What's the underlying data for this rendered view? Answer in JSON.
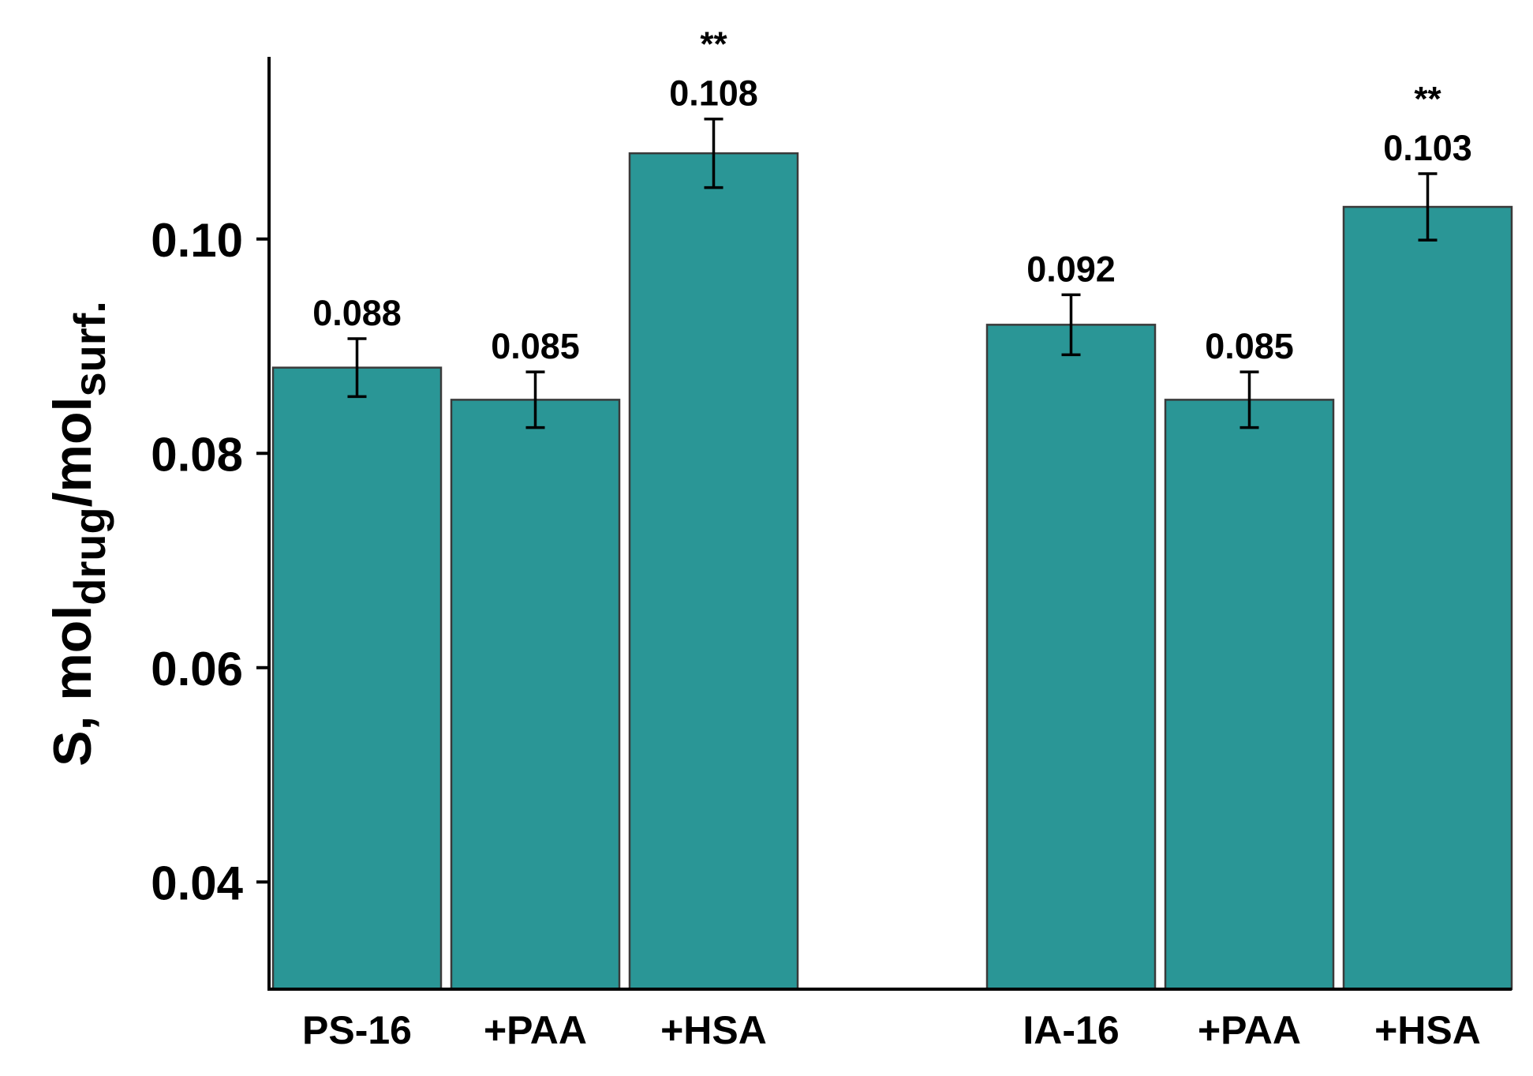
{
  "chart_data": {
    "type": "bar",
    "ylabel": {
      "prefix": "S, mol",
      "sub1": "drug",
      "slash": "/mol",
      "sub2": "surf."
    },
    "ylim": [
      0.03,
      0.117
    ],
    "yticks": [
      0.04,
      0.06,
      0.08,
      0.1
    ],
    "ytick_labels": [
      "0.04",
      "0.06",
      "0.08",
      "0.10"
    ],
    "bar_color": "#2a9696",
    "groups": [
      {
        "bars": [
          {
            "category": "PS-16",
            "value": 0.088,
            "label": "0.088",
            "error": 0.0027,
            "sig": ""
          },
          {
            "category": "+PAA",
            "value": 0.085,
            "label": "0.085",
            "error": 0.0026,
            "sig": ""
          },
          {
            "category": "+HSA",
            "value": 0.108,
            "label": "0.108",
            "error": 0.0032,
            "sig": "**"
          }
        ]
      },
      {
        "bars": [
          {
            "category": "IA-16",
            "value": 0.092,
            "label": "0.092",
            "error": 0.0028,
            "sig": ""
          },
          {
            "category": "+PAA",
            "value": 0.085,
            "label": "0.085",
            "error": 0.0026,
            "sig": ""
          },
          {
            "category": "+HSA",
            "value": 0.103,
            "label": "0.103",
            "error": 0.0031,
            "sig": "**"
          }
        ]
      }
    ]
  }
}
